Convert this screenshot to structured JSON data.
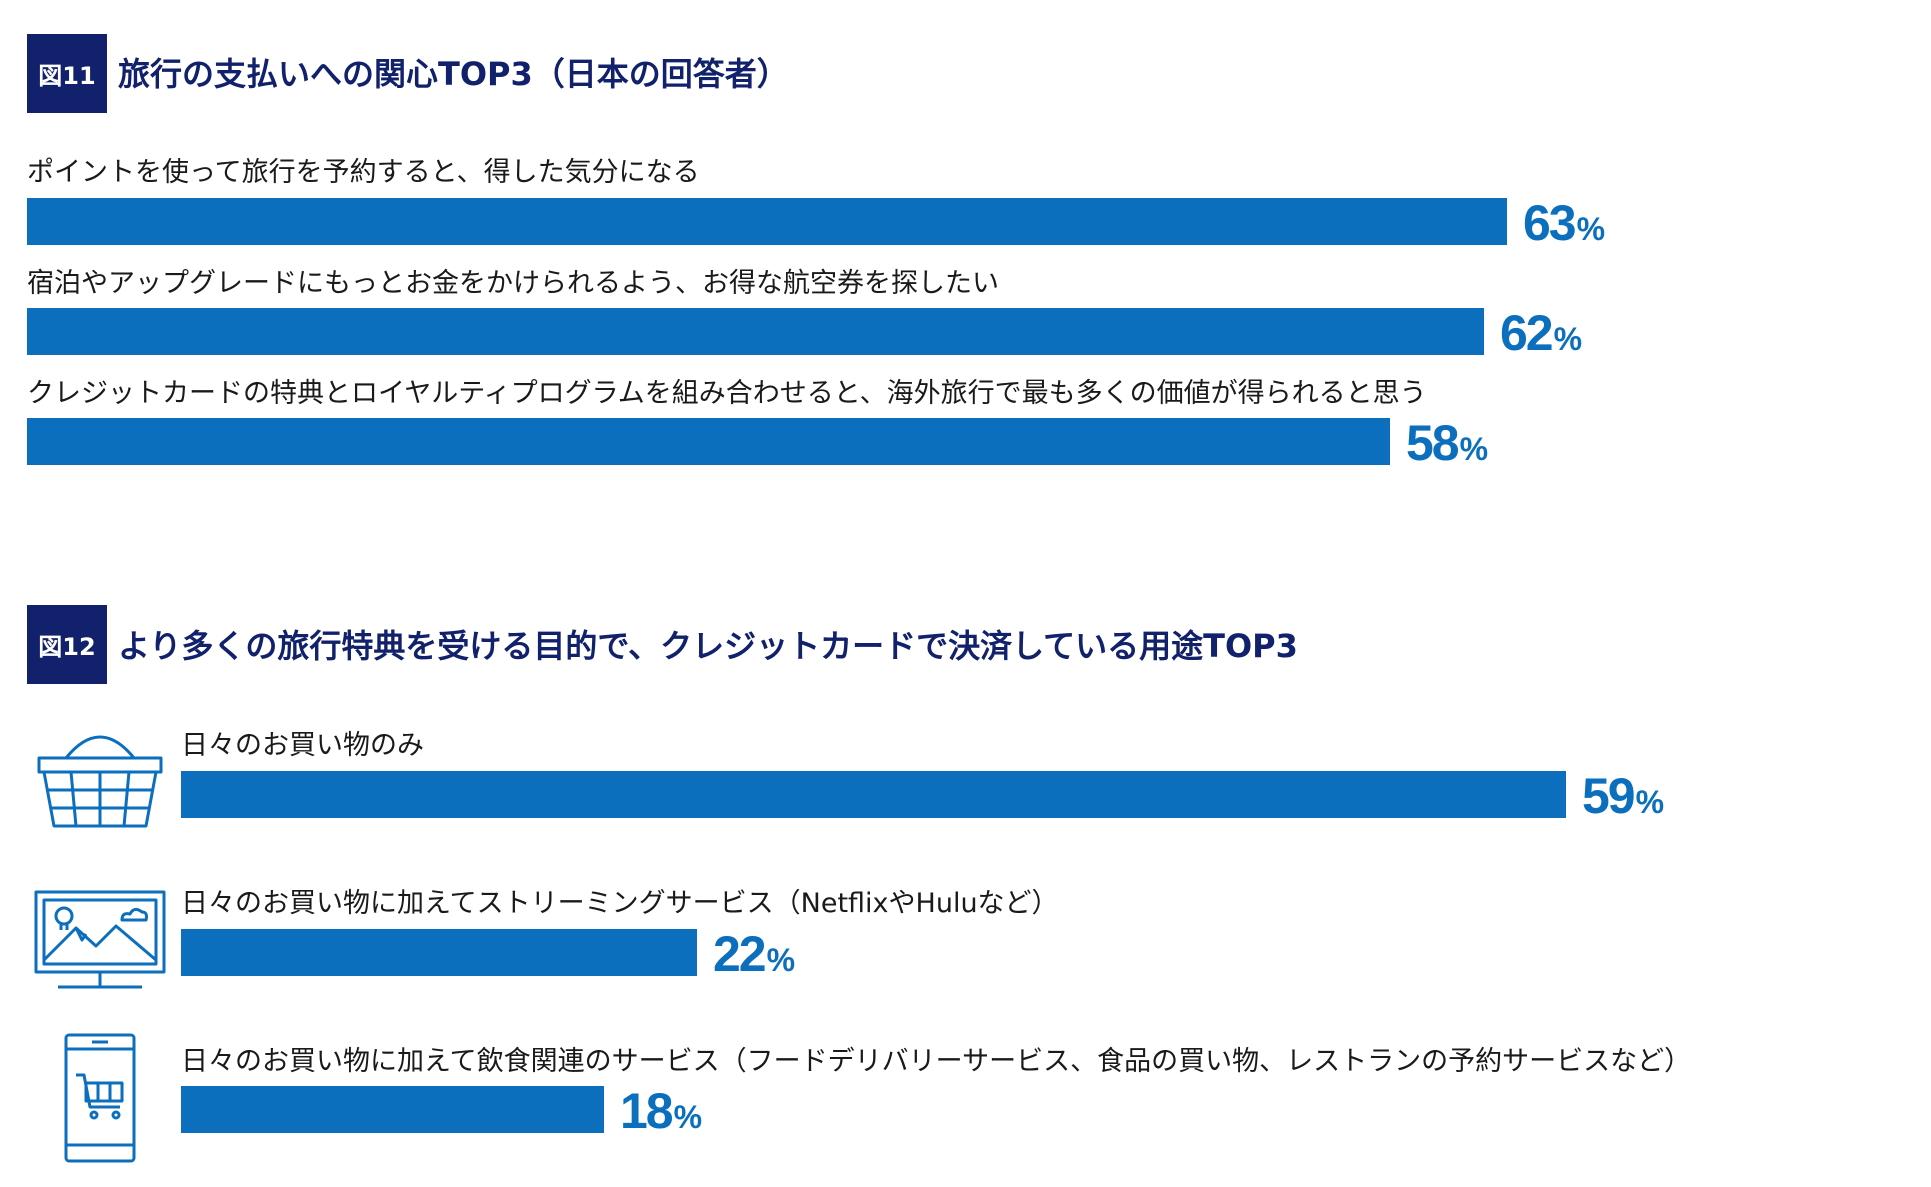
{
  "chart_data": [
    {
      "type": "bar",
      "figure_label": "図11",
      "title": "旅行の支払いへの関心TOP3（日本の回答者）",
      "categories": [
        "ポイントを使って旅行を予約すると、得した気分になる",
        "宿泊やアップグレードにもっとお金をかけられるよう、お得な航空券を探したい",
        "クレジットカードの特典とロイヤルティプログラムを組み合わせると、海外旅行で最も多くの価値が得られると思う"
      ],
      "values": [
        63,
        62,
        58
      ],
      "unit": "%",
      "xlim": [
        0,
        100
      ],
      "orientation": "horizontal",
      "grid": false
    },
    {
      "type": "bar",
      "figure_label": "図12",
      "title": "より多くの旅行特典を受ける目的で、クレジットカードで決済している用途TOP3",
      "categories": [
        "日々のお買い物のみ",
        "日々のお買い物に加えてストリーミングサービス（NetflixやHuluなど）",
        "日々のお買い物に加えて飲食関連のサービス（フードデリバリーサービス、食品の買い物、レストランの予約サービスなど）"
      ],
      "values": [
        59,
        22,
        18
      ],
      "unit": "%",
      "xlim": [
        0,
        100
      ],
      "orientation": "horizontal",
      "grid": false,
      "icons": [
        "shopping-basket-icon",
        "monitor-landscape-icon",
        "smartphone-cart-icon"
      ]
    }
  ],
  "colors": {
    "bar": "#0b6fbd",
    "value_text": "#0b6fbd",
    "title": "#12216b",
    "tag_bg": "#12216b"
  }
}
